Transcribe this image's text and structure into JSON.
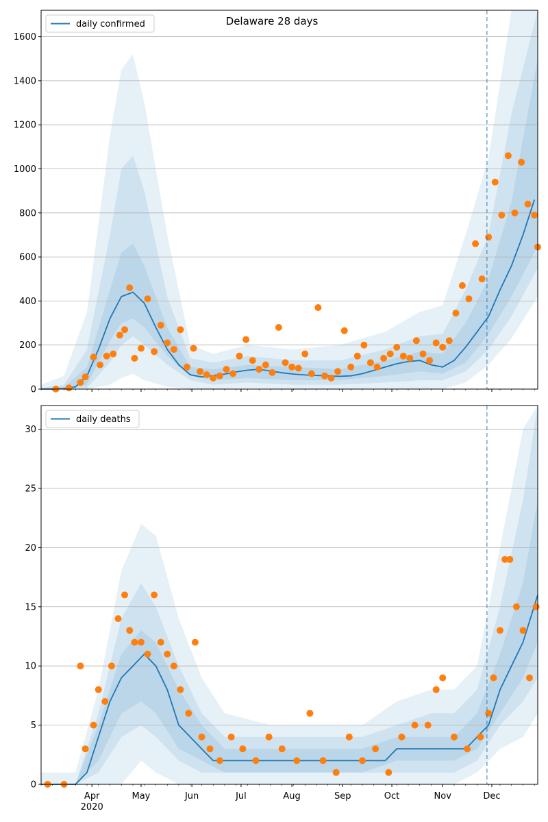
{
  "chart_data": [
    {
      "type": "line",
      "title": "Delaware 28 days",
      "xlabel": "",
      "ylabel": "",
      "ylim": [
        0,
        1720
      ],
      "yticks": [
        0,
        200,
        400,
        600,
        800,
        1000,
        1200,
        1400,
        1600
      ],
      "grid": "horizontal",
      "legend_placement": "top-left",
      "forecast_start_date": "2020-11-28",
      "colors": {
        "line": "#1f77b4",
        "points": "#ff7f0e",
        "band": "#1f77b4",
        "vline": "#1f77b4"
      },
      "series": [
        {
          "name": "daily confirmed",
          "kind": "line",
          "x": [
            "2020-03-01",
            "2020-03-08",
            "2020-03-15",
            "2020-03-22",
            "2020-03-29",
            "2020-04-05",
            "2020-04-12",
            "2020-04-19",
            "2020-04-26",
            "2020-05-03",
            "2020-05-10",
            "2020-05-17",
            "2020-05-24",
            "2020-05-31",
            "2020-06-07",
            "2020-06-14",
            "2020-06-21",
            "2020-06-28",
            "2020-07-05",
            "2020-07-12",
            "2020-07-19",
            "2020-07-26",
            "2020-08-02",
            "2020-08-09",
            "2020-08-16",
            "2020-08-23",
            "2020-08-30",
            "2020-09-06",
            "2020-09-13",
            "2020-09-20",
            "2020-09-27",
            "2020-10-04",
            "2020-10-11",
            "2020-10-18",
            "2020-10-25",
            "2020-11-01",
            "2020-11-08",
            "2020-11-15",
            "2020-11-22",
            "2020-11-29",
            "2020-12-06",
            "2020-12-13",
            "2020-12-20",
            "2020-12-27"
          ],
          "values": [
            0,
            0,
            2,
            10,
            60,
            180,
            320,
            420,
            440,
            390,
            280,
            180,
            110,
            65,
            55,
            62,
            68,
            78,
            86,
            90,
            82,
            74,
            68,
            64,
            62,
            60,
            58,
            60,
            70,
            85,
            100,
            115,
            125,
            130,
            110,
            100,
            130,
            190,
            260,
            330,
            450,
            560,
            700,
            860
          ]
        },
        {
          "name": "",
          "kind": "points",
          "x": [
            "2020-03-10",
            "2020-03-18",
            "2020-03-25",
            "2020-03-28",
            "2020-04-02",
            "2020-04-06",
            "2020-04-10",
            "2020-04-14",
            "2020-04-18",
            "2020-04-21",
            "2020-04-24",
            "2020-04-27",
            "2020-05-01",
            "2020-05-05",
            "2020-05-09",
            "2020-05-13",
            "2020-05-17",
            "2020-05-21",
            "2020-05-25",
            "2020-05-29",
            "2020-06-02",
            "2020-06-06",
            "2020-06-10",
            "2020-06-14",
            "2020-06-18",
            "2020-06-22",
            "2020-06-26",
            "2020-06-30",
            "2020-07-04",
            "2020-07-08",
            "2020-07-12",
            "2020-07-16",
            "2020-07-20",
            "2020-07-24",
            "2020-07-28",
            "2020-08-01",
            "2020-08-05",
            "2020-08-09",
            "2020-08-13",
            "2020-08-17",
            "2020-08-21",
            "2020-08-25",
            "2020-08-29",
            "2020-09-02",
            "2020-09-06",
            "2020-09-10",
            "2020-09-14",
            "2020-09-18",
            "2020-09-22",
            "2020-09-26",
            "2020-09-30",
            "2020-10-04",
            "2020-10-08",
            "2020-10-12",
            "2020-10-16",
            "2020-10-20",
            "2020-10-24",
            "2020-10-28",
            "2020-11-01",
            "2020-11-05",
            "2020-11-09",
            "2020-11-13",
            "2020-11-17",
            "2020-11-21",
            "2020-11-25",
            "2020-11-29",
            "2020-12-03",
            "2020-12-07",
            "2020-12-11",
            "2020-12-15",
            "2020-12-19",
            "2020-12-23",
            "2020-12-27",
            "2020-12-29"
          ],
          "values": [
            0,
            5,
            30,
            55,
            145,
            110,
            150,
            160,
            245,
            270,
            460,
            140,
            185,
            410,
            170,
            290,
            210,
            180,
            270,
            100,
            185,
            80,
            65,
            50,
            60,
            90,
            70,
            150,
            225,
            130,
            90,
            110,
            75,
            280,
            120,
            100,
            95,
            160,
            70,
            370,
            60,
            50,
            80,
            265,
            100,
            150,
            200,
            120,
            100,
            140,
            160,
            190,
            150,
            140,
            220,
            160,
            130,
            210,
            190,
            220,
            345,
            470,
            410,
            660,
            500,
            690,
            940,
            790,
            1060,
            800,
            1030,
            840,
            790,
            645
          ]
        }
      ],
      "bands": [
        {
          "level": "outer",
          "x": [
            "2020-03-01",
            "2020-03-15",
            "2020-03-29",
            "2020-04-12",
            "2020-04-19",
            "2020-04-26",
            "2020-05-03",
            "2020-05-17",
            "2020-05-31",
            "2020-06-14",
            "2020-07-05",
            "2020-08-02",
            "2020-08-30",
            "2020-09-27",
            "2020-10-18",
            "2020-11-01",
            "2020-11-15",
            "2020-11-29",
            "2020-12-13",
            "2020-12-29"
          ],
          "low": [
            0,
            0,
            0,
            20,
            50,
            70,
            40,
            10,
            0,
            0,
            5,
            0,
            0,
            0,
            0,
            0,
            30,
            110,
            230,
            420
          ],
          "high": [
            20,
            60,
            350,
            1150,
            1450,
            1520,
            1300,
            700,
            200,
            160,
            200,
            180,
            200,
            260,
            350,
            380,
            700,
            1050,
            1720,
            1720
          ]
        },
        {
          "level": "middle",
          "x": [
            "2020-03-01",
            "2020-03-15",
            "2020-03-29",
            "2020-04-12",
            "2020-04-19",
            "2020-04-26",
            "2020-05-03",
            "2020-05-17",
            "2020-05-31",
            "2020-06-14",
            "2020-07-05",
            "2020-08-02",
            "2020-08-30",
            "2020-09-27",
            "2020-10-18",
            "2020-11-01",
            "2020-11-15",
            "2020-11-29",
            "2020-12-13",
            "2020-12-29"
          ],
          "low": [
            0,
            0,
            5,
            120,
            200,
            240,
            200,
            110,
            40,
            20,
            30,
            20,
            20,
            30,
            40,
            40,
            80,
            180,
            330,
            550
          ],
          "high": [
            5,
            20,
            180,
            700,
            1000,
            1060,
            900,
            420,
            140,
            120,
            150,
            130,
            130,
            180,
            240,
            250,
            450,
            700,
            1250,
            1720
          ]
        },
        {
          "level": "inner",
          "x": [
            "2020-03-01",
            "2020-03-15",
            "2020-03-29",
            "2020-04-12",
            "2020-04-19",
            "2020-04-26",
            "2020-05-03",
            "2020-05-17",
            "2020-05-31",
            "2020-06-14",
            "2020-07-05",
            "2020-08-02",
            "2020-08-30",
            "2020-09-27",
            "2020-10-18",
            "2020-11-01",
            "2020-11-15",
            "2020-11-29",
            "2020-12-13",
            "2020-12-29"
          ],
          "low": [
            0,
            0,
            20,
            220,
            300,
            320,
            280,
            150,
            60,
            40,
            50,
            40,
            40,
            60,
            80,
            70,
            120,
            250,
            420,
            650
          ],
          "high": [
            2,
            10,
            100,
            450,
            620,
            660,
            560,
            280,
            100,
            90,
            110,
            100,
            90,
            130,
            170,
            160,
            300,
            500,
            850,
            1500
          ]
        }
      ]
    },
    {
      "type": "line",
      "title": "",
      "xlabel": "",
      "ylabel": "",
      "ylim": [
        0,
        32
      ],
      "yticks": [
        0,
        5,
        10,
        15,
        20,
        25,
        30
      ],
      "xtick_labels": [
        "Apr",
        "May",
        "Jun",
        "Jul",
        "Aug",
        "Sep",
        "Oct",
        "Nov",
        "Dec"
      ],
      "xtick_dates": [
        "2020-04-01",
        "2020-05-01",
        "2020-06-01",
        "2020-07-01",
        "2020-08-01",
        "2020-09-01",
        "2020-10-01",
        "2020-11-01",
        "2020-12-01"
      ],
      "year_label": "2020",
      "xlim": [
        "2020-03-01",
        "2020-12-29"
      ],
      "grid": "horizontal",
      "legend_placement": "top-left",
      "forecast_start_date": "2020-11-28",
      "colors": {
        "line": "#1f77b4",
        "points": "#ff7f0e",
        "band": "#1f77b4",
        "vline": "#1f77b4"
      },
      "series": [
        {
          "name": "daily deaths",
          "kind": "line",
          "x": [
            "2020-03-01",
            "2020-03-22",
            "2020-03-29",
            "2020-04-05",
            "2020-04-12",
            "2020-04-19",
            "2020-04-26",
            "2020-05-03",
            "2020-05-10",
            "2020-05-17",
            "2020-05-24",
            "2020-05-31",
            "2020-06-07",
            "2020-06-14",
            "2020-06-21",
            "2020-07-05",
            "2020-08-02",
            "2020-08-30",
            "2020-09-27",
            "2020-10-04",
            "2020-10-18",
            "2020-11-01",
            "2020-11-15",
            "2020-11-22",
            "2020-11-29",
            "2020-12-06",
            "2020-12-13",
            "2020-12-20",
            "2020-12-29"
          ],
          "values": [
            0,
            0,
            1,
            4,
            7,
            9,
            10,
            11,
            10,
            8,
            5,
            4,
            3,
            2,
            2,
            2,
            2,
            2,
            2,
            3,
            3,
            3,
            3,
            4,
            5,
            8,
            10,
            12,
            16
          ]
        },
        {
          "name": "",
          "kind": "points",
          "x": [
            "2020-03-05",
            "2020-03-15",
            "2020-03-25",
            "2020-03-28",
            "2020-04-02",
            "2020-04-05",
            "2020-04-09",
            "2020-04-13",
            "2020-04-17",
            "2020-04-21",
            "2020-04-24",
            "2020-04-27",
            "2020-05-01",
            "2020-05-05",
            "2020-05-09",
            "2020-05-13",
            "2020-05-17",
            "2020-05-21",
            "2020-05-25",
            "2020-05-30",
            "2020-06-03",
            "2020-06-07",
            "2020-06-12",
            "2020-06-18",
            "2020-06-25",
            "2020-07-02",
            "2020-07-10",
            "2020-07-18",
            "2020-07-26",
            "2020-08-04",
            "2020-08-12",
            "2020-08-20",
            "2020-08-28",
            "2020-09-05",
            "2020-09-13",
            "2020-09-21",
            "2020-09-29",
            "2020-10-07",
            "2020-10-15",
            "2020-10-23",
            "2020-10-28",
            "2020-11-01",
            "2020-11-08",
            "2020-11-16",
            "2020-11-24",
            "2020-11-29",
            "2020-12-02",
            "2020-12-06",
            "2020-12-09",
            "2020-12-12",
            "2020-12-16",
            "2020-12-20",
            "2020-12-24",
            "2020-12-28"
          ],
          "values": [
            0,
            0,
            10,
            3,
            5,
            8,
            7,
            10,
            14,
            16,
            13,
            12,
            12,
            11,
            16,
            12,
            11,
            10,
            8,
            6,
            12,
            4,
            3,
            2,
            4,
            3,
            2,
            4,
            3,
            2,
            6,
            2,
            1,
            4,
            2,
            3,
            1,
            4,
            5,
            5,
            8,
            9,
            4,
            3,
            4,
            6,
            9,
            13,
            19,
            19,
            15,
            13,
            9,
            15
          ]
        }
      ],
      "bands": [
        {
          "level": "outer",
          "x": [
            "2020-03-01",
            "2020-03-22",
            "2020-04-05",
            "2020-04-19",
            "2020-05-01",
            "2020-05-10",
            "2020-05-24",
            "2020-06-07",
            "2020-06-21",
            "2020-07-19",
            "2020-08-16",
            "2020-09-13",
            "2020-10-04",
            "2020-10-25",
            "2020-11-08",
            "2020-11-22",
            "2020-12-06",
            "2020-12-20",
            "2020-12-29"
          ],
          "low": [
            0,
            0,
            0,
            0,
            2,
            1,
            0,
            0,
            0,
            0,
            0,
            0,
            0,
            0,
            0,
            1,
            3,
            4,
            6
          ],
          "high": [
            1,
            1,
            8,
            18,
            22,
            21,
            14,
            9,
            6,
            5,
            5,
            5,
            7,
            8,
            8,
            10,
            20,
            30,
            32
          ]
        },
        {
          "level": "middle",
          "x": [
            "2020-03-01",
            "2020-03-22",
            "2020-04-05",
            "2020-04-19",
            "2020-05-01",
            "2020-05-10",
            "2020-05-24",
            "2020-06-07",
            "2020-06-21",
            "2020-07-19",
            "2020-08-16",
            "2020-09-13",
            "2020-10-04",
            "2020-10-25",
            "2020-11-08",
            "2020-11-22",
            "2020-12-06",
            "2020-12-20",
            "2020-12-29"
          ],
          "low": [
            0,
            0,
            1,
            4,
            5,
            4,
            2,
            1,
            1,
            1,
            1,
            1,
            1,
            1,
            1,
            2,
            5,
            7,
            9
          ],
          "high": [
            0,
            0,
            6,
            14,
            17,
            15,
            10,
            6,
            4,
            4,
            4,
            4,
            5,
            6,
            6,
            8,
            15,
            24,
            32
          ]
        },
        {
          "level": "inner",
          "x": [
            "2020-03-01",
            "2020-03-22",
            "2020-04-05",
            "2020-04-19",
            "2020-05-01",
            "2020-05-10",
            "2020-05-24",
            "2020-06-07",
            "2020-06-21",
            "2020-07-19",
            "2020-08-16",
            "2020-09-13",
            "2020-10-04",
            "2020-10-25",
            "2020-11-08",
            "2020-11-22",
            "2020-12-06",
            "2020-12-20",
            "2020-12-29"
          ],
          "low": [
            0,
            0,
            2,
            6,
            7,
            6,
            3,
            2,
            1,
            1,
            1,
            1,
            2,
            2,
            2,
            3,
            6,
            9,
            12
          ],
          "high": [
            0,
            0,
            5,
            11,
            13,
            12,
            8,
            5,
            3,
            3,
            3,
            3,
            4,
            4,
            4,
            6,
            11,
            17,
            24
          ]
        }
      ]
    }
  ]
}
